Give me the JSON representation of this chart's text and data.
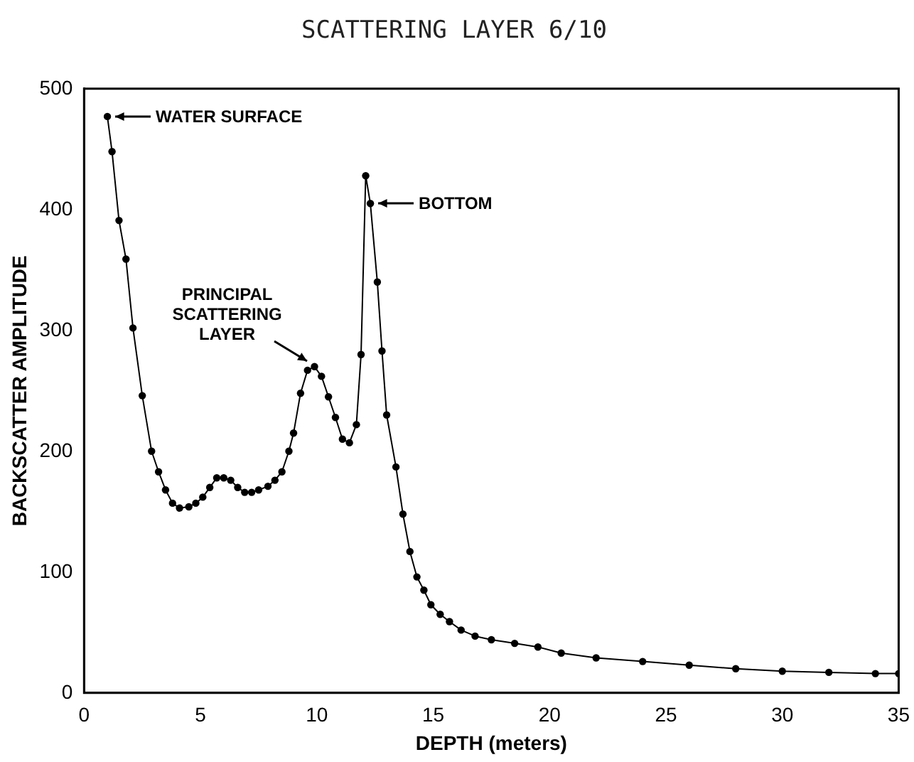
{
  "chart_data": {
    "type": "line",
    "title": "SCATTERING LAYER 6/10",
    "xlabel": "DEPTH (meters)",
    "ylabel": "BACKSCATTER AMPLITUDE",
    "xlim": [
      0,
      35
    ],
    "xticks": [
      0,
      5,
      10,
      15,
      20,
      25,
      30,
      35
    ],
    "ylim": [
      0,
      500
    ],
    "yticks": [
      0,
      100,
      200,
      300,
      400,
      500
    ],
    "marker": "circle",
    "line_style": "solid",
    "legend": false,
    "series": [
      {
        "color": "#000000",
        "x": [
          1.0,
          1.2,
          1.5,
          1.8,
          2.1,
          2.5,
          2.9,
          3.2,
          3.5,
          3.8,
          4.1,
          4.5,
          4.8,
          5.1,
          5.4,
          5.7,
          6.0,
          6.3,
          6.6,
          6.9,
          7.2,
          7.5,
          7.9,
          8.2,
          8.5,
          8.8,
          9.0,
          9.3,
          9.6,
          9.9,
          10.2,
          10.5,
          10.8,
          11.1,
          11.4,
          11.7,
          11.9,
          12.1,
          12.3,
          12.6,
          12.8,
          13.0,
          13.4,
          13.7,
          14.0,
          14.3,
          14.6,
          14.9,
          15.3,
          15.7,
          16.2,
          16.8,
          17.5,
          18.5,
          19.5,
          20.5,
          22,
          24,
          26,
          28,
          30,
          32,
          34,
          35
        ],
        "values": [
          477,
          448,
          391,
          359,
          302,
          246,
          200,
          183,
          168,
          157,
          153,
          154,
          157,
          162,
          170,
          178,
          178,
          176,
          170,
          166,
          166,
          168,
          171,
          176,
          183,
          200,
          215,
          248,
          267,
          270,
          262,
          245,
          228,
          210,
          207,
          222,
          280,
          428,
          405,
          340,
          283,
          230,
          187,
          148,
          117,
          96,
          85,
          73,
          65,
          59,
          52,
          47,
          44,
          41,
          38,
          33,
          29,
          26,
          23,
          20,
          18,
          17,
          16,
          16
        ]
      }
    ],
    "annotations": [
      {
        "text": "WATER SURFACE",
        "x": 1.0,
        "y": 477
      },
      {
        "text": "PRINCIPAL SCATTERING LAYER",
        "x": 9.9,
        "y": 270
      },
      {
        "text": "BOTTOM",
        "x": 12.3,
        "y": 405
      }
    ]
  }
}
